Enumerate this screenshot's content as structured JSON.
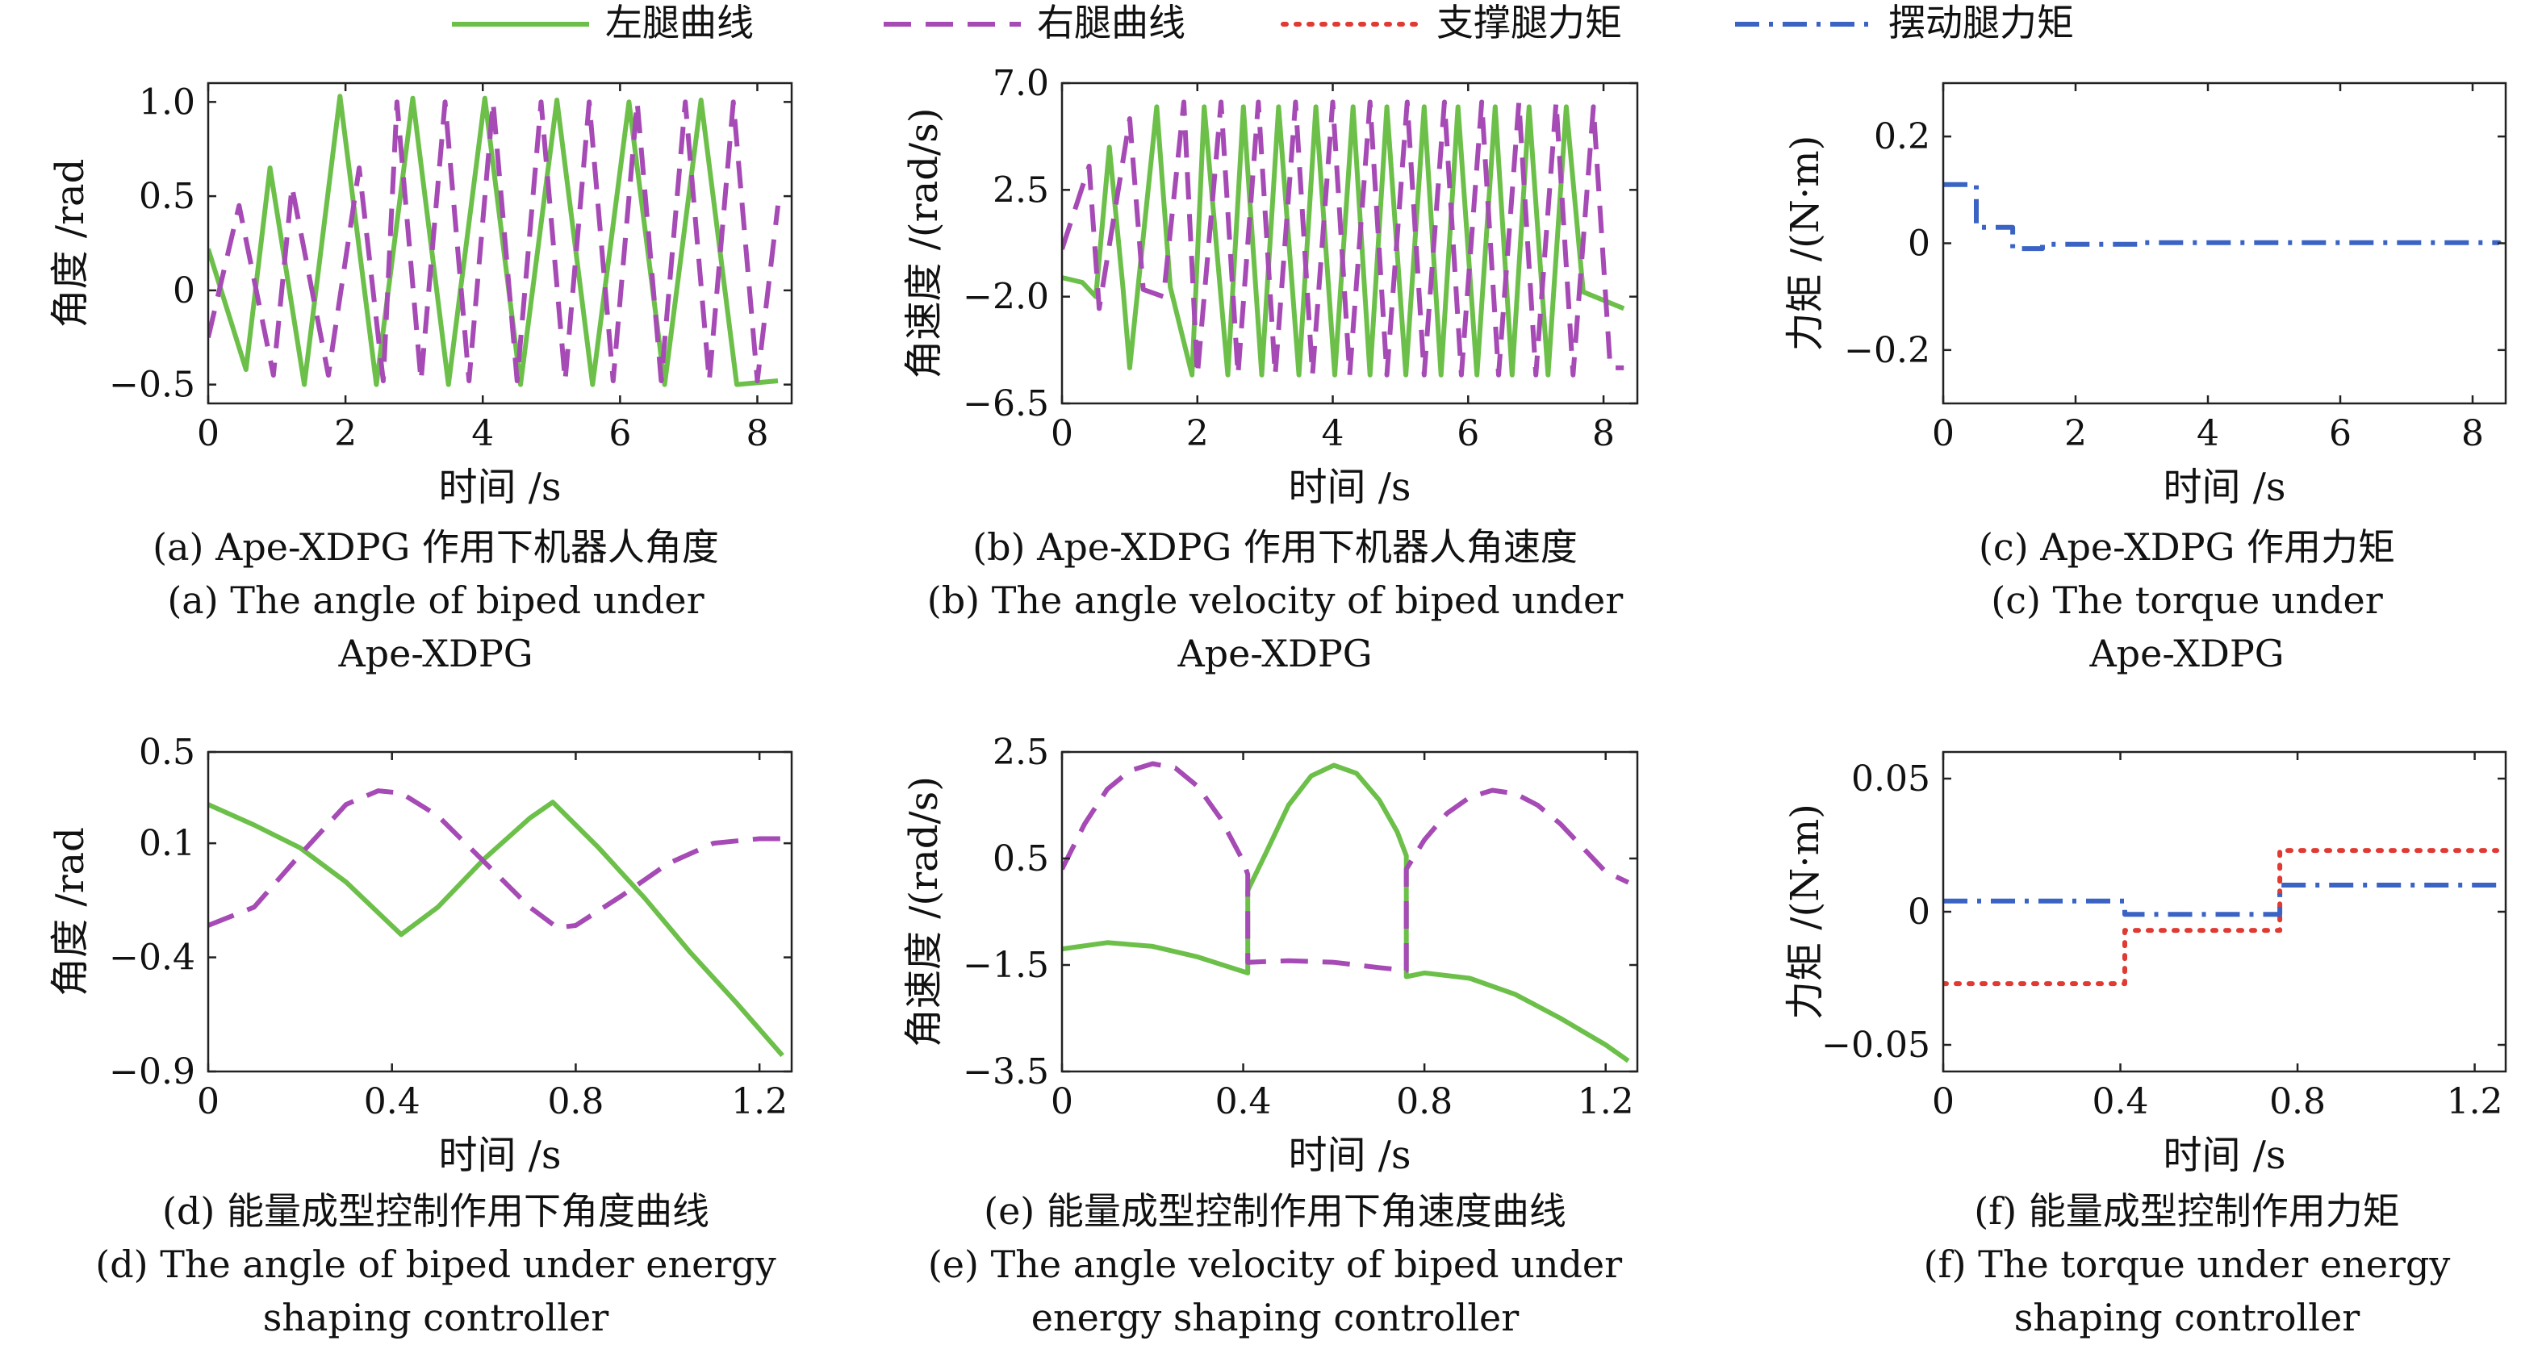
{
  "legend": {
    "entries": [
      {
        "label": "左腿曲线",
        "color": "#6cc04a",
        "dash": "solid"
      },
      {
        "label": "右腿曲线",
        "color": "#a64ab5",
        "dash": "dash"
      },
      {
        "label": "支撑腿力矩",
        "color": "#e03a32",
        "dash": "dot"
      },
      {
        "label": "摆动腿力矩",
        "color": "#3a63c4",
        "dash": "dashdot"
      }
    ]
  },
  "captions": [
    {
      "id": "a",
      "lines": [
        "(a) Ape-XDPG 作用下机器人角度",
        "(a) The angle of biped under",
        "Ape-XDPG"
      ]
    },
    {
      "id": "b",
      "lines": [
        "(b) Ape-XDPG 作用下机器人角速度",
        "(b) The angle velocity of biped under",
        "Ape-XDPG"
      ]
    },
    {
      "id": "c",
      "lines": [
        "(c) Ape-XDPG 作用力矩",
        "(c) The torque under",
        "Ape-XDPG"
      ]
    },
    {
      "id": "d",
      "lines": [
        "(d) 能量成型控制作用下角度曲线",
        "(d) The angle of biped under energy",
        "shaping controller"
      ]
    },
    {
      "id": "e",
      "lines": [
        "(e) 能量成型控制作用下角速度曲线",
        "(e) The angle velocity of biped under",
        "energy shaping controller"
      ]
    },
    {
      "id": "f",
      "lines": [
        "(f) 能量成型控制作用力矩",
        "(f) The torque under energy",
        "shaping controller"
      ]
    }
  ],
  "chart_data": [
    {
      "id": "a",
      "type": "line",
      "xlabel": "时间 /s",
      "ylabel": "角度 /rad",
      "xlim": [
        0,
        8.5
      ],
      "ylim": [
        -0.6,
        1.1
      ],
      "xticks": [
        0,
        2,
        4,
        6,
        8
      ],
      "xtick_labels": [
        "0",
        "2",
        "4",
        "6",
        "8"
      ],
      "yticks": [
        -0.5,
        0,
        0.5,
        1.0
      ],
      "ytick_labels": [
        "−0.5",
        "0",
        "0.5",
        "1.0"
      ],
      "series": [
        {
          "name": "左腿曲线",
          "color": "#6cc04a",
          "dash": "solid",
          "x": [
            0,
            0.55,
            0.9,
            1.4,
            1.92,
            2.45,
            2.98,
            3.5,
            4.03,
            4.55,
            5.08,
            5.6,
            6.13,
            6.65,
            7.18,
            7.7,
            8.3
          ],
          "y": [
            0.22,
            -0.42,
            0.65,
            -0.5,
            1.03,
            -0.5,
            1.02,
            -0.5,
            1.02,
            -0.5,
            1.01,
            -0.5,
            1.0,
            -0.5,
            1.01,
            -0.5,
            -0.48
          ]
        },
        {
          "name": "右腿曲线",
          "color": "#a64ab5",
          "dash": "dash",
          "x": [
            0,
            0.45,
            0.95,
            1.22,
            1.75,
            2.2,
            2.55,
            2.75,
            3.1,
            3.45,
            3.8,
            4.15,
            4.5,
            4.85,
            5.2,
            5.55,
            5.9,
            6.25,
            6.6,
            6.95,
            7.3,
            7.65,
            8.0,
            8.3
          ],
          "y": [
            -0.25,
            0.45,
            -0.45,
            0.55,
            -0.45,
            0.65,
            -0.48,
            1.0,
            -0.48,
            1.0,
            -0.48,
            1.0,
            -0.48,
            1.0,
            -0.48,
            1.0,
            -0.48,
            1.0,
            -0.48,
            1.0,
            -0.48,
            1.0,
            -0.48,
            0.45
          ]
        }
      ]
    },
    {
      "id": "b",
      "type": "line",
      "xlabel": "时间 /s",
      "ylabel": "角速度 /(rad/s)",
      "xlim": [
        0,
        8.5
      ],
      "ylim": [
        -6.5,
        7.0
      ],
      "xticks": [
        0,
        2,
        4,
        6,
        8
      ],
      "xtick_labels": [
        "0",
        "2",
        "4",
        "6",
        "8"
      ],
      "yticks": [
        -6.5,
        -2.0,
        2.5,
        7.0
      ],
      "ytick_labels": [
        "−6.5",
        "−2.0",
        "2.5",
        "7.0"
      ],
      "series": [
        {
          "name": "左腿曲线",
          "color": "#6cc04a",
          "dash": "solid",
          "x": [
            0,
            0.3,
            0.5,
            0.7,
            0.9,
            1.0,
            1.4,
            1.6,
            1.92,
            2.1,
            2.45,
            2.68,
            2.95,
            3.2,
            3.5,
            3.75,
            4.03,
            4.3,
            4.55,
            4.8,
            5.08,
            5.35,
            5.6,
            5.85,
            6.13,
            6.4,
            6.65,
            6.9,
            7.18,
            7.45,
            7.7,
            8.3
          ],
          "y": [
            -1.2,
            -1.4,
            -2.0,
            4.3,
            -1.6,
            -5.0,
            6.0,
            -1.6,
            -5.3,
            6.0,
            -5.3,
            6.0,
            -5.3,
            6.0,
            -5.3,
            6.0,
            -5.3,
            6.0,
            -5.3,
            6.0,
            -5.3,
            6.0,
            -5.3,
            6.0,
            -5.3,
            6.0,
            -5.3,
            6.0,
            -5.3,
            6.0,
            -1.8,
            -2.5
          ]
        },
        {
          "name": "右腿曲线",
          "color": "#a64ab5",
          "dash": "dash",
          "x": [
            0,
            0.4,
            0.55,
            1.0,
            1.2,
            1.5,
            1.8,
            2.0,
            2.35,
            2.6,
            2.9,
            3.15,
            3.45,
            3.7,
            4.0,
            4.25,
            4.55,
            4.8,
            5.1,
            5.35,
            5.65,
            5.9,
            6.2,
            6.45,
            6.75,
            7.0,
            7.3,
            7.55,
            7.85,
            8.1,
            8.3
          ],
          "y": [
            0.0,
            3.5,
            -2.5,
            5.5,
            -1.7,
            -2.0,
            6.2,
            -5.3,
            6.2,
            -5.3,
            6.2,
            -5.3,
            6.2,
            -5.3,
            6.2,
            -5.3,
            6.2,
            -5.3,
            6.2,
            -5.3,
            6.2,
            -5.3,
            6.2,
            -5.3,
            6.2,
            -5.3,
            6.2,
            -5.3,
            6.0,
            -5.0,
            -5.0
          ]
        }
      ]
    },
    {
      "id": "c",
      "type": "line",
      "xlabel": "时间 /s",
      "ylabel": "力矩 /(N·m)",
      "xlim": [
        0,
        8.5
      ],
      "ylim": [
        -0.3,
        0.3
      ],
      "xticks": [
        0,
        2,
        4,
        6,
        8
      ],
      "xtick_labels": [
        "0",
        "2",
        "4",
        "6",
        "8"
      ],
      "yticks": [
        -0.2,
        0,
        0.2
      ],
      "ytick_labels": [
        "−0.2",
        "0",
        "0.2"
      ],
      "series": [
        {
          "name": "摆动腿力矩",
          "color": "#3a63c4",
          "dash": "dashdot",
          "step": true,
          "x": [
            0,
            0.5,
            1.05,
            1.5,
            3.0,
            8.4
          ],
          "y": [
            0.11,
            0.03,
            -0.01,
            -0.002,
            0.001,
            0.0
          ]
        }
      ]
    },
    {
      "id": "d",
      "type": "line",
      "xlabel": "时间 /s",
      "ylabel": "角度 /rad",
      "xlim": [
        0,
        1.27
      ],
      "ylim": [
        -0.9,
        0.5
      ],
      "xticks": [
        0,
        0.4,
        0.8,
        1.2
      ],
      "xtick_labels": [
        "0",
        "0.4",
        "0.8",
        "1.2"
      ],
      "yticks": [
        -0.9,
        -0.4,
        0.1,
        0.5
      ],
      "ytick_labels": [
        "−0.9",
        "−0.4",
        "0.1",
        "0.5"
      ],
      "series": [
        {
          "name": "左腿曲线",
          "color": "#6cc04a",
          "dash": "solid",
          "x": [
            0,
            0.1,
            0.2,
            0.3,
            0.42,
            0.5,
            0.6,
            0.7,
            0.75,
            0.85,
            0.95,
            1.05,
            1.15,
            1.25
          ],
          "y": [
            0.27,
            0.18,
            0.08,
            -0.07,
            -0.3,
            -0.18,
            0.03,
            0.21,
            0.28,
            0.08,
            -0.14,
            -0.38,
            -0.6,
            -0.83
          ]
        },
        {
          "name": "右腿曲线",
          "color": "#a64ab5",
          "dash": "dash",
          "x": [
            0,
            0.1,
            0.2,
            0.3,
            0.37,
            0.42,
            0.5,
            0.6,
            0.7,
            0.76,
            0.8,
            0.9,
            1.0,
            1.1,
            1.2,
            1.25
          ],
          "y": [
            -0.26,
            -0.18,
            0.05,
            0.27,
            0.33,
            0.32,
            0.22,
            0.02,
            -0.18,
            -0.27,
            -0.26,
            -0.13,
            0.01,
            0.1,
            0.12,
            0.12
          ]
        }
      ]
    },
    {
      "id": "e",
      "type": "line",
      "xlabel": "时间 /s",
      "ylabel": "角速度 /(rad/s)",
      "xlim": [
        0,
        1.27
      ],
      "ylim": [
        -3.5,
        2.5
      ],
      "xticks": [
        0,
        0.4,
        0.8,
        1.2
      ],
      "xtick_labels": [
        "0",
        "0.4",
        "0.8",
        "1.2"
      ],
      "yticks": [
        -3.5,
        -1.5,
        0.5,
        2.5
      ],
      "ytick_labels": [
        "−3.5",
        "−1.5",
        "0.5",
        "2.5"
      ],
      "series": [
        {
          "name": "左腿曲线",
          "color": "#6cc04a",
          "dash": "solid",
          "x": [
            0,
            0.1,
            0.2,
            0.3,
            0.41,
            0.41,
            0.45,
            0.5,
            0.55,
            0.6,
            0.65,
            0.7,
            0.74,
            0.76,
            0.76,
            0.8,
            0.9,
            1.0,
            1.1,
            1.2,
            1.25
          ],
          "y": [
            -1.2,
            -1.08,
            -1.15,
            -1.35,
            -1.65,
            -0.1,
            0.6,
            1.5,
            2.05,
            2.25,
            2.1,
            1.6,
            1.0,
            0.55,
            -1.72,
            -1.65,
            -1.75,
            -2.05,
            -2.5,
            -3.0,
            -3.3
          ]
        },
        {
          "name": "右腿曲线",
          "color": "#a64ab5",
          "dash": "dash",
          "x": [
            0,
            0.05,
            0.1,
            0.15,
            0.2,
            0.25,
            0.3,
            0.35,
            0.4,
            0.41,
            0.41,
            0.5,
            0.6,
            0.7,
            0.76,
            0.76,
            0.8,
            0.85,
            0.9,
            0.95,
            1.0,
            1.05,
            1.1,
            1.15,
            1.2,
            1.25
          ],
          "y": [
            0.3,
            1.15,
            1.8,
            2.15,
            2.28,
            2.2,
            1.85,
            1.25,
            0.45,
            0.2,
            -1.45,
            -1.42,
            -1.45,
            -1.55,
            -1.6,
            0.3,
            0.85,
            1.35,
            1.65,
            1.78,
            1.72,
            1.5,
            1.15,
            0.7,
            0.25,
            0.05
          ]
        }
      ]
    },
    {
      "id": "f",
      "type": "line",
      "xlabel": "时间 /s",
      "ylabel": "力矩 /(N·m)",
      "xlim": [
        0,
        1.27
      ],
      "ylim": [
        -0.06,
        0.06
      ],
      "xticks": [
        0,
        0.4,
        0.8,
        1.2
      ],
      "xtick_labels": [
        "0",
        "0.4",
        "0.8",
        "1.2"
      ],
      "yticks": [
        -0.05,
        0,
        0.05
      ],
      "ytick_labels": [
        "−0.05",
        "0",
        "0.05"
      ],
      "series": [
        {
          "name": "支撑腿力矩",
          "color": "#e03a32",
          "dash": "dot",
          "step": true,
          "x": [
            0,
            0.41,
            0.76,
            1.25
          ],
          "y": [
            -0.027,
            -0.007,
            0.023,
            0.023
          ]
        },
        {
          "name": "摆动腿力矩",
          "color": "#3a63c4",
          "dash": "dashdot",
          "step": true,
          "x": [
            0,
            0.41,
            0.76,
            1.25
          ],
          "y": [
            0.004,
            -0.001,
            0.01,
            0.01
          ]
        }
      ]
    }
  ]
}
